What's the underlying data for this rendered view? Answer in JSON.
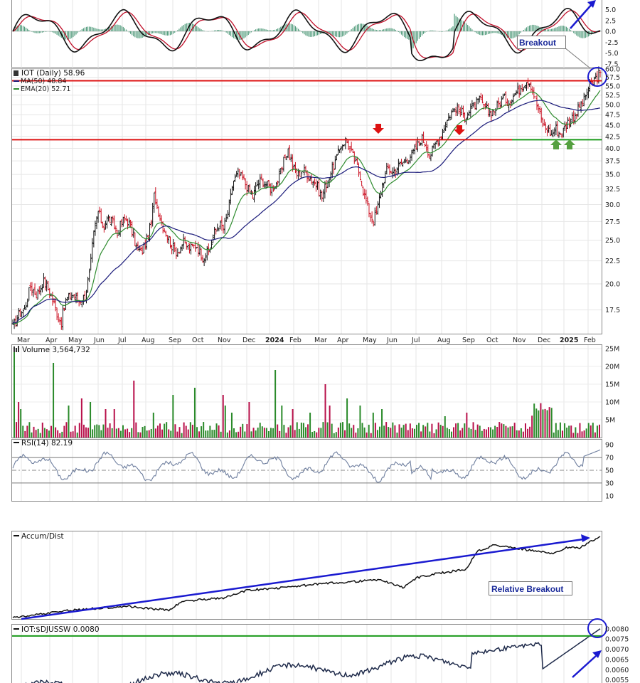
{
  "chart_data": {
    "type": "line",
    "timeframe": "Daily",
    "x_ticks": [
      "Mar",
      "Apr",
      "May",
      "Jun",
      "Jul",
      "Aug",
      "Sep",
      "Oct",
      "Nov",
      "Dec",
      "2024",
      "Feb",
      "Mar",
      "Apr",
      "May",
      "Jun",
      "Jul",
      "Aug",
      "Sep",
      "Oct",
      "Nov",
      "Dec",
      "2025",
      "Feb"
    ],
    "macd": {
      "y_ticks": [
        "5.0",
        "2.5",
        "0.0",
        "-2.5",
        "-5.0",
        "-7.5"
      ],
      "ylim": [
        -7.5,
        5.0
      ]
    },
    "price": {
      "symbol_label": "IOT (Daily) 58.96",
      "ma50_label": "MA(50) 48.84",
      "ema20_label": "EMA(20) 52.71",
      "y_ticks": [
        "60.0",
        "57.5",
        "55.0",
        "52.5",
        "50.0",
        "47.5",
        "45.0",
        "42.5",
        "40.0",
        "37.5",
        "35.0",
        "32.5",
        "30.0",
        "27.5",
        "25.0",
        "22.5",
        "20.0",
        "17.5"
      ],
      "scale": "log",
      "ylim": [
        15.5,
        60.0
      ],
      "resistance_levels": [
        56.5,
        41.8
      ],
      "support_level": 41.8,
      "close_path": [
        [
          0,
          16.0
        ],
        [
          8,
          17.2
        ],
        [
          15,
          17.6
        ],
        [
          22,
          19.8
        ],
        [
          30,
          18.9
        ],
        [
          38,
          20.3
        ],
        [
          46,
          19.2
        ],
        [
          54,
          17.4
        ],
        [
          60,
          16.3
        ],
        [
          66,
          18.4
        ],
        [
          74,
          19.0
        ],
        [
          82,
          18.3
        ],
        [
          90,
          18.8
        ],
        [
          96,
          21.3
        ],
        [
          100,
          25.5
        ],
        [
          106,
          29.0
        ],
        [
          112,
          26.8
        ],
        [
          118,
          28.0
        ],
        [
          124,
          27.4
        ],
        [
          130,
          26.0
        ],
        [
          136,
          27.6
        ],
        [
          142,
          27.8
        ],
        [
          148,
          26.2
        ],
        [
          154,
          24.0
        ],
        [
          160,
          23.5
        ],
        [
          166,
          24.8
        ],
        [
          172,
          27.2
        ],
        [
          176,
          31.8
        ],
        [
          180,
          29.5
        ],
        [
          186,
          27.0
        ],
        [
          192,
          25.6
        ],
        [
          198,
          24.2
        ],
        [
          204,
          23.5
        ],
        [
          212,
          24.7
        ],
        [
          220,
          23.9
        ],
        [
          228,
          24.5
        ],
        [
          236,
          22.9
        ],
        [
          244,
          23.6
        ],
        [
          250,
          25.8
        ],
        [
          256,
          27.2
        ],
        [
          262,
          26.5
        ],
        [
          268,
          29.0
        ],
        [
          274,
          33.8
        ],
        [
          280,
          35.0
        ],
        [
          286,
          34.2
        ],
        [
          292,
          32.6
        ],
        [
          298,
          31.2
        ],
        [
          304,
          33.4
        ],
        [
          310,
          33.9
        ],
        [
          316,
          33.1
        ],
        [
          322,
          32.6
        ],
        [
          328,
          33.6
        ],
        [
          334,
          35.6
        ],
        [
          338,
          38.2
        ],
        [
          342,
          39.8
        ],
        [
          348,
          36.4
        ],
        [
          354,
          34.8
        ],
        [
          360,
          35.9
        ],
        [
          366,
          35.1
        ],
        [
          372,
          34.0
        ],
        [
          378,
          33.0
        ],
        [
          384,
          31.1
        ],
        [
          390,
          33.6
        ],
        [
          396,
          35.6
        ],
        [
          402,
          37.8
        ],
        [
          408,
          40.6
        ],
        [
          414,
          41.8
        ],
        [
          420,
          39.5
        ],
        [
          426,
          37.2
        ],
        [
          432,
          34.8
        ],
        [
          436,
          31.8
        ],
        [
          440,
          30.2
        ],
        [
          444,
          28.5
        ],
        [
          448,
          27.8
        ],
        [
          452,
          28.8
        ],
        [
          456,
          31.2
        ],
        [
          460,
          33.8
        ],
        [
          466,
          36.2
        ],
        [
          472,
          35.4
        ],
        [
          478,
          36.4
        ],
        [
          484,
          37.2
        ],
        [
          490,
          38.0
        ],
        [
          496,
          38.8
        ],
        [
          502,
          40.4
        ],
        [
          508,
          42.2
        ],
        [
          514,
          40.8
        ],
        [
          518,
          38.5
        ],
        [
          522,
          39.8
        ],
        [
          526,
          41.2
        ],
        [
          532,
          42.9
        ],
        [
          538,
          45.5
        ],
        [
          544,
          47.8
        ],
        [
          550,
          49.2
        ],
        [
          556,
          48.2
        ],
        [
          562,
          47.3
        ],
        [
          568,
          48.6
        ],
        [
          574,
          49.9
        ],
        [
          580,
          51.0
        ],
        [
          586,
          49.5
        ],
        [
          592,
          47.8
        ],
        [
          598,
          48.5
        ],
        [
          604,
          50.2
        ],
        [
          610,
          51.8
        ],
        [
          616,
          50.6
        ],
        [
          622,
          52.3
        ],
        [
          628,
          53.8
        ],
        [
          634,
          55.6
        ],
        [
          640,
          57.0
        ],
        [
          644,
          55.4
        ],
        [
          648,
          52.4
        ],
        [
          652,
          49.6
        ],
        [
          656,
          46.8
        ],
        [
          660,
          44.8
        ],
        [
          666,
          43.8
        ],
        [
          670,
          42.8
        ],
        [
          674,
          44.6
        ],
        [
          678,
          43.4
        ],
        [
          682,
          43.0
        ],
        [
          686,
          44.5
        ],
        [
          690,
          45.8
        ],
        [
          694,
          46.6
        ],
        [
          698,
          47.4
        ],
        [
          702,
          48.6
        ],
        [
          706,
          50.2
        ],
        [
          710,
          51.4
        ],
        [
          714,
          53.8
        ],
        [
          718,
          55.2
        ],
        [
          722,
          56.6
        ],
        [
          726,
          57.4
        ],
        [
          730,
          58.96
        ]
      ]
    },
    "volume": {
      "label": "Volume 3,564,732",
      "y_ticks": [
        "25M",
        "20M",
        "15M",
        "10M",
        "5M"
      ],
      "ylim": [
        0,
        25
      ]
    },
    "rsi": {
      "label": "RSI(14) 82.19",
      "y_ticks": [
        "90",
        "70",
        "50",
        "30",
        "10"
      ],
      "ylim": [
        0,
        100
      ]
    },
    "accum_dist": {
      "label": "Accum/Dist"
    },
    "ratio": {
      "label": "IOT:$DJUSSW 0.0080",
      "y_ticks": [
        "0.0080",
        "0.0075",
        "0.0070",
        "0.0065",
        "0.0060",
        "0.0055"
      ],
      "ylim": [
        0.00535,
        0.0082
      ]
    },
    "annotations": {
      "breakout": "Breakout",
      "relative_breakout": "Relative Breakout"
    },
    "colors": {
      "price_up": "#2e8b2e",
      "price_down": "#cc1122",
      "ma50": "#1a1a7a",
      "ema20": "#2e8b2e",
      "resistance": "#dd1111",
      "support": "#1a9a1a",
      "trend_arrow": "#1a1ad0",
      "arrow_red": "#dd1111",
      "arrow_green": "#55a040",
      "rsi": "#6f7f9f"
    }
  }
}
